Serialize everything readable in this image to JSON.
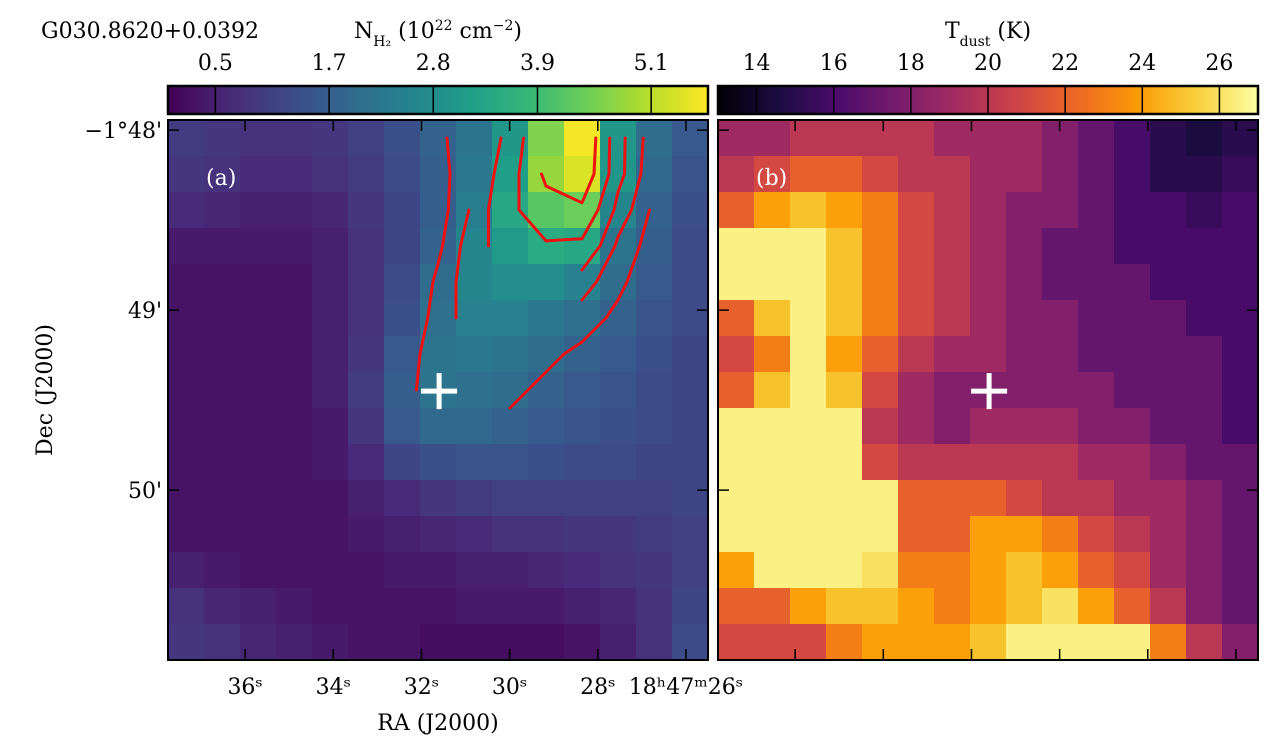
{
  "chart_data": [
    {
      "type": "heatmap",
      "title": "G030.8620+0.0392",
      "colorbar_label": [
        {
          "text": "N"
        },
        {
          "text": "H₂",
          "shift": "sub"
        },
        {
          "text": " (10"
        },
        {
          "text": "22",
          "shift": "super"
        },
        {
          "text": " cm"
        },
        {
          "text": "−2",
          "shift": "super"
        },
        {
          "text": ")"
        }
      ],
      "cmap": "viridis",
      "clim": [
        0,
        5.7
      ],
      "cticks": [
        0.5,
        1.7,
        2.8,
        3.9,
        5.1
      ],
      "panel_label": "(a)",
      "xlabel": "RA (J2000)",
      "ylabel": "Dec (J2000)",
      "xlim": [
        37.75,
        25.5
      ],
      "xticks": [
        {
          "value": 36,
          "label": "36ˢ"
        },
        {
          "value": 34,
          "label": "34ˢ"
        },
        {
          "value": 32,
          "label": "32ˢ"
        },
        {
          "value": 30,
          "label": "30ˢ"
        },
        {
          "value": 28,
          "label": "28ˢ"
        },
        {
          "value": 26,
          "label": "18ʰ47ᵐ26ˢ"
        }
      ],
      "ylim": [
        -110.944,
        -107.944
      ],
      "yticks": [
        {
          "value": -108,
          "label": "−1°48'"
        },
        {
          "value": -109,
          "label": "49'"
        },
        {
          "value": -110,
          "label": "50'"
        }
      ],
      "marker": {
        "x": 31.6,
        "y": -109.45
      },
      "contour_levels": [
        1.9,
        2.3,
        2.8,
        3.6,
        4.6
      ],
      "contour_color": "#ee1111",
      "matrix": [
        [
          1.0,
          0.9,
          0.8,
          0.8,
          0.9,
          1.1,
          1.4,
          1.8,
          2.2,
          3.0,
          4.6,
          5.6,
          3.0,
          2.0,
          1.6
        ],
        [
          0.9,
          0.8,
          0.7,
          0.7,
          0.8,
          1.0,
          1.3,
          1.7,
          2.3,
          3.2,
          4.8,
          5.4,
          3.0,
          1.9,
          1.5
        ],
        [
          0.7,
          0.6,
          0.5,
          0.5,
          0.6,
          0.9,
          1.2,
          1.7,
          2.4,
          3.4,
          4.2,
          4.4,
          2.6,
          1.8,
          1.4
        ],
        [
          0.4,
          0.4,
          0.4,
          0.4,
          0.5,
          0.8,
          1.2,
          1.8,
          2.6,
          3.1,
          3.5,
          3.4,
          2.2,
          1.7,
          1.3
        ],
        [
          0.3,
          0.3,
          0.3,
          0.3,
          0.5,
          0.8,
          1.3,
          2.0,
          2.6,
          2.8,
          2.8,
          2.5,
          2.0,
          1.6,
          1.3
        ],
        [
          0.3,
          0.3,
          0.3,
          0.3,
          0.5,
          0.8,
          1.4,
          2.1,
          2.5,
          2.5,
          2.3,
          2.1,
          1.8,
          1.5,
          1.3
        ],
        [
          0.3,
          0.3,
          0.3,
          0.3,
          0.5,
          0.9,
          1.6,
          2.2,
          2.3,
          2.2,
          2.0,
          1.8,
          1.6,
          1.4,
          1.2
        ],
        [
          0.3,
          0.3,
          0.3,
          0.3,
          0.5,
          1.0,
          1.7,
          2.2,
          2.1,
          2.0,
          1.8,
          1.6,
          1.5,
          1.3,
          1.2
        ],
        [
          0.3,
          0.3,
          0.3,
          0.3,
          0.4,
          0.9,
          1.6,
          1.9,
          1.9,
          1.8,
          1.6,
          1.5,
          1.4,
          1.3,
          1.2
        ],
        [
          0.3,
          0.3,
          0.3,
          0.3,
          0.4,
          0.7,
          1.2,
          1.4,
          1.5,
          1.5,
          1.4,
          1.3,
          1.3,
          1.2,
          1.2
        ],
        [
          0.3,
          0.3,
          0.3,
          0.3,
          0.3,
          0.5,
          0.7,
          0.9,
          1.0,
          1.1,
          1.1,
          1.1,
          1.1,
          1.1,
          1.2
        ],
        [
          0.3,
          0.3,
          0.3,
          0.3,
          0.3,
          0.4,
          0.5,
          0.6,
          0.7,
          0.8,
          0.8,
          0.9,
          0.9,
          1.0,
          1.1
        ],
        [
          0.5,
          0.4,
          0.3,
          0.3,
          0.3,
          0.3,
          0.4,
          0.4,
          0.5,
          0.5,
          0.6,
          0.7,
          0.8,
          0.9,
          1.1
        ],
        [
          0.8,
          0.6,
          0.5,
          0.4,
          0.3,
          0.3,
          0.3,
          0.3,
          0.4,
          0.4,
          0.4,
          0.5,
          0.6,
          0.8,
          1.2
        ],
        [
          0.9,
          0.8,
          0.6,
          0.5,
          0.4,
          0.3,
          0.3,
          0.2,
          0.2,
          0.2,
          0.2,
          0.3,
          0.5,
          0.8,
          1.3
        ]
      ]
    },
    {
      "type": "heatmap",
      "colorbar_label": [
        {
          "text": "T"
        },
        {
          "text": "dust",
          "shift": "sub"
        },
        {
          "text": " (K)"
        }
      ],
      "cmap": "inferno",
      "clim": [
        13,
        27
      ],
      "cticks": [
        14,
        16,
        18,
        20,
        22,
        24,
        26
      ],
      "panel_label": "(b)",
      "xlim": [
        37.75,
        25.5
      ],
      "xticks": [
        36,
        34,
        32,
        30,
        28,
        26
      ],
      "ylim": [
        -110.944,
        -107.944
      ],
      "yticks": [
        -108,
        -109,
        -110
      ],
      "tick_labels": false,
      "marker": {
        "x": 31.6,
        "y": -109.45
      },
      "matrix": [
        [
          19,
          19,
          20,
          20,
          20,
          20,
          19,
          19,
          19,
          18,
          17,
          16,
          15,
          14.5,
          15
        ],
        [
          20,
          21,
          22,
          22,
          21,
          20,
          20,
          19,
          19,
          18,
          17,
          16,
          15,
          15,
          15.5
        ],
        [
          22,
          24,
          25,
          24,
          23,
          21,
          20,
          19,
          18,
          18,
          17,
          16,
          16,
          15.5,
          16
        ],
        [
          26.5,
          26.5,
          26.5,
          25,
          23,
          21,
          20,
          19,
          18,
          17,
          17,
          16,
          16,
          16,
          16
        ],
        [
          26.5,
          26.5,
          26.5,
          25,
          23,
          21,
          20,
          19,
          18,
          17,
          17,
          17,
          16,
          16,
          16
        ],
        [
          22,
          25,
          26.5,
          25,
          23,
          21,
          20,
          19,
          18,
          18,
          17,
          17,
          17,
          16,
          16
        ],
        [
          21,
          23,
          26.5,
          24,
          22,
          20,
          19,
          19,
          18,
          18,
          17,
          17,
          17,
          17,
          16
        ],
        [
          22,
          25,
          26.5,
          25,
          21,
          19,
          18,
          18,
          18,
          18,
          18,
          17,
          17,
          17,
          16
        ],
        [
          26.5,
          26.5,
          26.5,
          26.5,
          20,
          19,
          18,
          19,
          19,
          19,
          18,
          18,
          17,
          17,
          16
        ],
        [
          26.5,
          26.5,
          26.5,
          26.5,
          21,
          20,
          20,
          20,
          20,
          20,
          19,
          19,
          18,
          17,
          17
        ],
        [
          26.5,
          26.5,
          26.5,
          26.5,
          26.5,
          22,
          22,
          22,
          21,
          20,
          20,
          19,
          19,
          18,
          17
        ],
        [
          26.5,
          26.5,
          26.5,
          26.5,
          26.5,
          22,
          22,
          24,
          24,
          23,
          21,
          20,
          19,
          18,
          17
        ],
        [
          24,
          26.5,
          26.5,
          26.5,
          26,
          23,
          23,
          24,
          25,
          24,
          22,
          21,
          19,
          18,
          17
        ],
        [
          22,
          22,
          24,
          25,
          25,
          24,
          23,
          24,
          25,
          26,
          24,
          22,
          20,
          18,
          17
        ],
        [
          21,
          21,
          21,
          23,
          24,
          24,
          24,
          25,
          26.5,
          26.5,
          26.5,
          26.5,
          23,
          20,
          18
        ]
      ]
    }
  ]
}
